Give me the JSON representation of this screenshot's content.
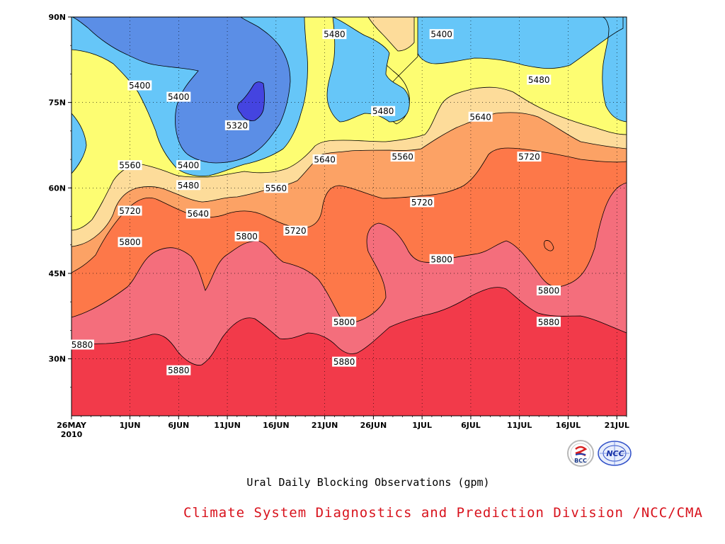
{
  "chart_data": {
    "type": "contour",
    "title": "",
    "subtitle": "Ural Daily Blocking Observations (gpm)",
    "xlabel": "",
    "ylabel": "",
    "x_ticks": [
      "26MAY\n2010",
      "1JUN",
      "6JUN",
      "11JUN",
      "16JUN",
      "21JUN",
      "26JUN",
      "1JUL",
      "6JUL",
      "11JUL",
      "16JUL",
      "21JUL"
    ],
    "y_ticks": [
      "30N",
      "45N",
      "60N",
      "75N",
      "90N"
    ],
    "xlim": [
      "2010-05-26",
      "2010-07-22"
    ],
    "ylim": [
      20,
      90
    ],
    "grid": true,
    "contour_levels": [
      5320,
      5400,
      5480,
      5560,
      5640,
      5720,
      5800,
      5880
    ],
    "fill_colors": {
      "below_5320": "#4444e0",
      "5320_5400": "#5b8ee6",
      "5400_5480": "#66c6f8",
      "5480_5560": "#fdfd72",
      "5560_5640": "#fddc9a",
      "5640_5720": "#fca265",
      "5720_5800": "#fd7849",
      "5800_5880": "#f46e7c",
      "above_5880": "#f23a4a"
    },
    "contour_labels": [
      {
        "value": "5400",
        "date": "2010-06-02",
        "lat": 78
      },
      {
        "value": "5400",
        "date": "2010-06-06",
        "lat": 76
      },
      {
        "value": "5320",
        "date": "2010-06-12",
        "lat": 71
      },
      {
        "value": "5400",
        "date": "2010-06-07",
        "lat": 64
      },
      {
        "value": "5560",
        "date": "2010-06-01",
        "lat": 64
      },
      {
        "value": "5480",
        "date": "2010-06-07",
        "lat": 60.5
      },
      {
        "value": "5560",
        "date": "2010-06-16",
        "lat": 60
      },
      {
        "value": "5720",
        "date": "2010-06-01",
        "lat": 56
      },
      {
        "value": "5640",
        "date": "2010-06-08",
        "lat": 55.5
      },
      {
        "value": "5800",
        "date": "2010-06-01",
        "lat": 50.5
      },
      {
        "value": "5800",
        "date": "2010-06-13",
        "lat": 51.5
      },
      {
        "value": "5720",
        "date": "2010-06-18",
        "lat": 52.5
      },
      {
        "value": "5640",
        "date": "2010-06-21",
        "lat": 65
      },
      {
        "value": "5560",
        "date": "2010-06-29",
        "lat": 65.5
      },
      {
        "value": "5480",
        "date": "2010-06-22",
        "lat": 87
      },
      {
        "value": "5480",
        "date": "2010-06-27",
        "lat": 73.5
      },
      {
        "value": "5400",
        "date": "2010-07-03",
        "lat": 87
      },
      {
        "value": "5480",
        "date": "2010-07-13",
        "lat": 79
      },
      {
        "value": "5640",
        "date": "2010-07-07",
        "lat": 72.5
      },
      {
        "value": "5720",
        "date": "2010-07-12",
        "lat": 65.5
      },
      {
        "value": "5720",
        "date": "2010-07-01",
        "lat": 57.5
      },
      {
        "value": "5800",
        "date": "2010-07-03",
        "lat": 47.5
      },
      {
        "value": "5800",
        "date": "2010-06-23",
        "lat": 36.5
      },
      {
        "value": "5800",
        "date": "2010-07-14",
        "lat": 42
      },
      {
        "value": "5880",
        "date": "2010-05-26",
        "lat": 32.5
      },
      {
        "value": "5880",
        "date": "2010-06-06",
        "lat": 28
      },
      {
        "value": "5880",
        "date": "2010-06-23",
        "lat": 29.5
      },
      {
        "value": "5880",
        "date": "2010-07-14",
        "lat": 36.5
      }
    ]
  },
  "footer": {
    "credit": "Climate System Diagnostics and Prediction Division /NCC/CMA",
    "logo_left_text": "BCC",
    "logo_right_text": "NCC"
  }
}
